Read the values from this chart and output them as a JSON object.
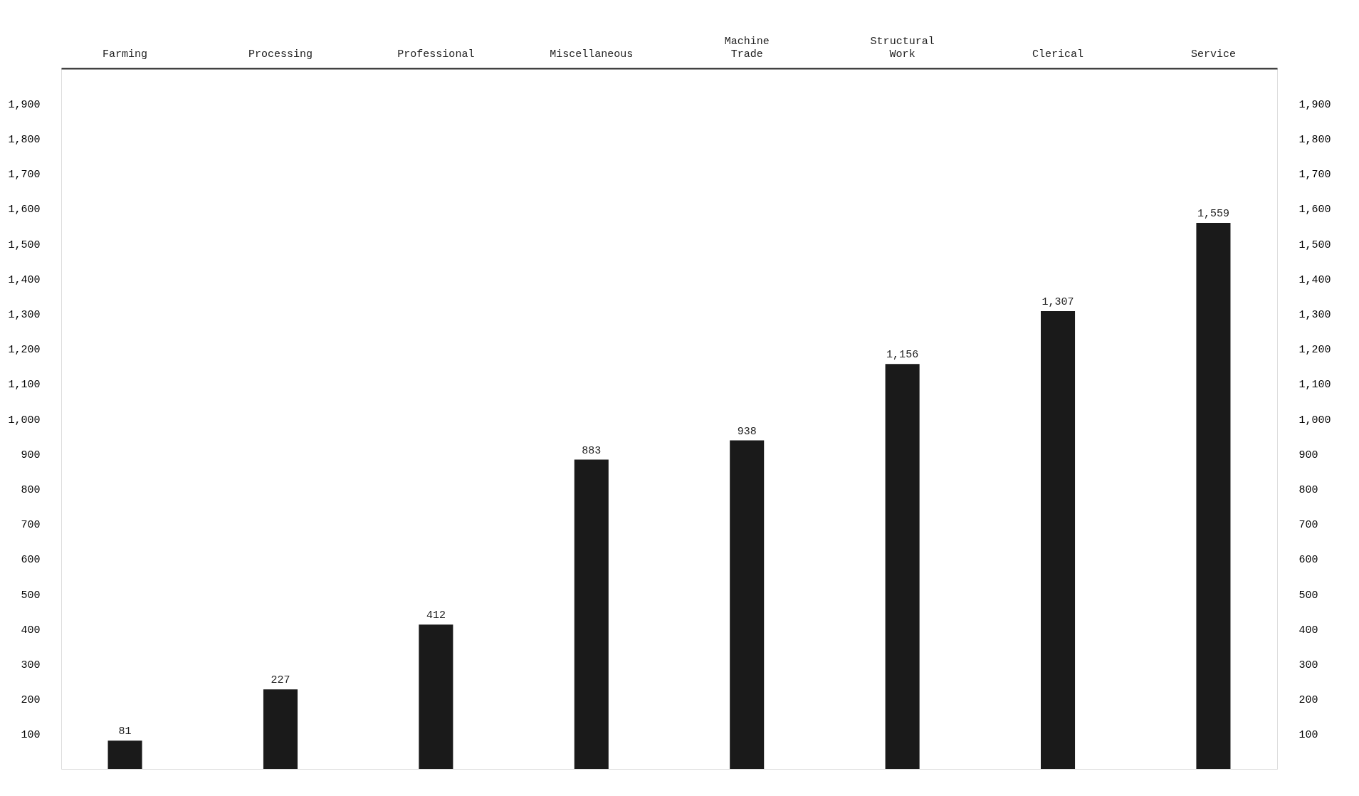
{
  "chart_data": {
    "type": "bar",
    "categories": [
      "Farming",
      "Processing",
      "Professional",
      "Miscellaneous",
      "Machine Trade",
      "Structural Work",
      "Clerical",
      "Service"
    ],
    "values": [
      81,
      227,
      412,
      883,
      938,
      1156,
      1307,
      1559
    ],
    "color": "#1a1a1a",
    "data_labels": true,
    "value_labels": [
      "81",
      "227",
      "412",
      "883",
      "938",
      "1,156",
      "1,307",
      "1,559"
    ],
    "ylim": [
      0,
      2000
    ],
    "yticks": [
      100,
      200,
      300,
      400,
      500,
      600,
      700,
      800,
      900,
      {
        "value": 1000,
        "label": "1,000"
      },
      {
        "value": 1100,
        "label": "1,100"
      },
      {
        "value": 1200,
        "label": "1,200"
      },
      {
        "value": 1300,
        "label": "1,300"
      },
      {
        "value": 1400,
        "label": "1,400"
      },
      {
        "value": 1500,
        "label": "1,500"
      },
      {
        "value": 1600,
        "label": "1,600"
      },
      {
        "value": 1700,
        "label": "1,700"
      },
      {
        "value": 1800,
        "label": "1,800"
      },
      {
        "value": 1900,
        "label": "1,900"
      }
    ],
    "y2lim": [
      0,
      2000
    ],
    "y2ticks": [
      100,
      200,
      300,
      400,
      500,
      600,
      700,
      800,
      900,
      {
        "value": 1000,
        "label": "1,000"
      },
      {
        "value": 1100,
        "label": "1,100"
      },
      {
        "value": 1200,
        "label": "1,200"
      },
      {
        "value": 1300,
        "label": "1,300"
      },
      {
        "value": 1400,
        "label": "1,400"
      },
      {
        "value": 1500,
        "label": "1,500"
      },
      {
        "value": 1600,
        "label": "1,600"
      },
      {
        "value": 1700,
        "label": "1,700"
      },
      {
        "value": 1800,
        "label": "1,800"
      },
      {
        "value": 1900,
        "label": "1,900"
      }
    ],
    "grid": false
  }
}
